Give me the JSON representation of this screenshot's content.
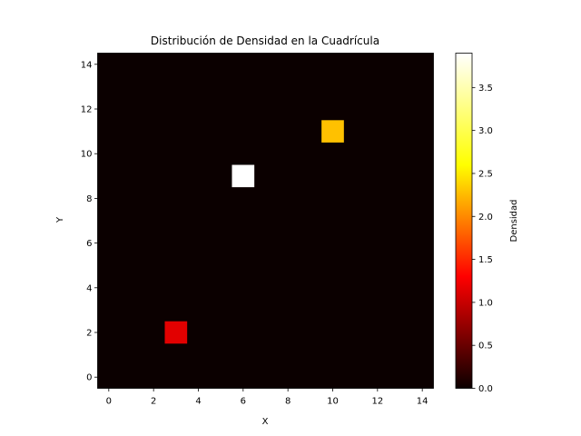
{
  "chart_data": {
    "type": "heatmap",
    "title": "Distribución de Densidad en la Cuadrícula",
    "xlabel": "X",
    "ylabel": "Y",
    "colorbar_label": "Densidad",
    "colormap": "hot",
    "grid_size": [
      15,
      15
    ],
    "x_ticks": [
      0,
      2,
      4,
      6,
      8,
      10,
      12,
      14
    ],
    "y_ticks": [
      0,
      2,
      4,
      6,
      8,
      10,
      12,
      14
    ],
    "xlim": [
      -0.5,
      14.5
    ],
    "ylim": [
      -0.5,
      14.5
    ],
    "background_value": 0.0,
    "cells": [
      {
        "x": 3,
        "y": 2,
        "value": 1.2
      },
      {
        "x": 6,
        "y": 9,
        "value": 3.9
      },
      {
        "x": 10,
        "y": 11,
        "value": 2.5
      }
    ],
    "color_range": [
      0.0,
      3.9
    ],
    "colorbar_ticks": [
      0.0,
      0.5,
      1.0,
      1.5,
      2.0,
      2.5,
      3.0,
      3.5
    ],
    "colorbar_tick_labels": [
      "0.0",
      "0.5",
      "1.0",
      "1.5",
      "2.0",
      "2.5",
      "3.0",
      "3.5"
    ],
    "grid": false
  }
}
